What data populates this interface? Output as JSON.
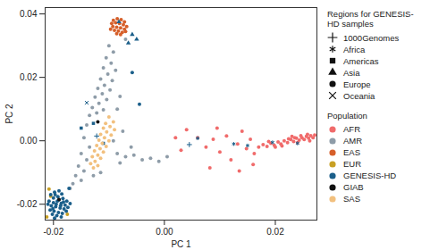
{
  "chart_data": {
    "type": "scatter",
    "xlabel": "PC 1",
    "ylabel": "PC 2",
    "xlim": [
      -0.0215,
      0.0275
    ],
    "ylim": [
      -0.025,
      0.042
    ],
    "xticks": [
      {
        "value": -0.02,
        "label": "-0.02"
      },
      {
        "value": 0,
        "label": "0.00"
      },
      {
        "value": 0.02,
        "label": "0.02"
      }
    ],
    "yticks": [
      {
        "value": -0.02,
        "label": "-0.02"
      },
      {
        "value": 0,
        "label": "0.00"
      },
      {
        "value": 0.02,
        "label": "0.02"
      },
      {
        "value": 0.04,
        "label": "0.04"
      }
    ],
    "grid": false,
    "legend": "right",
    "shape_legend_title": "Regions for GENESIS-HD samples",
    "legend_title": "Population",
    "series": [
      {
        "name": "AFR",
        "color": "#f06b6b",
        "marker": "circle",
        "points": [
          [
            0.017,
            -0.002
          ],
          [
            0.0178,
            -0.0012
          ],
          [
            0.0185,
            -0.0018
          ],
          [
            0.0192,
            -0.0008
          ],
          [
            0.0198,
            -0.0014
          ],
          [
            0.0205,
            -0.0004
          ],
          [
            0.021,
            -0.001
          ],
          [
            0.0216,
            0.0
          ],
          [
            0.0222,
            -0.0006
          ],
          [
            0.0228,
            0.0004
          ],
          [
            0.0233,
            -0.0002
          ],
          [
            0.0238,
            0.0008
          ],
          [
            0.0243,
            0.0002
          ],
          [
            0.0248,
            0.001
          ],
          [
            0.0252,
            0.0004
          ],
          [
            0.0256,
            0.0014
          ],
          [
            0.026,
            0.0008
          ],
          [
            0.0264,
            0.0016
          ],
          [
            0.0268,
            0.001
          ],
          [
            0.0271,
            0.0018
          ],
          [
            0.0258,
            0.002
          ],
          [
            0.0246,
            0.0016
          ],
          [
            0.0235,
            0.001
          ],
          [
            0.0224,
            0.0006
          ],
          [
            0.0212,
            -0.0016
          ],
          [
            0.02,
            -0.002
          ],
          [
            0.0188,
            -0.0002
          ],
          [
            0.024,
            -0.0006
          ],
          [
            0.0262,
            0.0
          ],
          [
            0.023,
            0.0014
          ],
          [
            0.004,
            0.0035
          ],
          [
            0.006,
            0.001
          ],
          [
            0.0075,
            -0.002
          ],
          [
            0.0088,
            0.0005
          ],
          [
            0.01,
            -0.0035
          ],
          [
            0.0112,
            0.0015
          ],
          [
            0.012,
            -0.006
          ],
          [
            0.0132,
            -0.001
          ],
          [
            0.014,
            0.003
          ],
          [
            0.0148,
            -0.0025
          ],
          [
            0.0155,
            0.0005
          ],
          [
            0.0162,
            -0.004
          ],
          [
            0.003,
            -0.003
          ],
          [
            0.0095,
            0.004
          ],
          [
            0.002,
            0.001
          ],
          [
            0.0082,
            -0.0085
          ],
          [
            0.0135,
            -0.0095
          ],
          [
            0.016,
            -0.0075
          ]
        ]
      },
      {
        "name": "AMR",
        "color": "#8e9ca8",
        "marker": "circle",
        "points": [
          [
            -0.01,
            0.03
          ],
          [
            -0.0092,
            0.028
          ],
          [
            -0.0105,
            0.0262
          ],
          [
            -0.0096,
            0.0245
          ],
          [
            -0.011,
            0.023
          ],
          [
            -0.0088,
            0.0222
          ],
          [
            -0.0102,
            0.021
          ],
          [
            -0.0115,
            0.0195
          ],
          [
            -0.0094,
            0.019
          ],
          [
            -0.0108,
            0.0175
          ],
          [
            -0.012,
            0.0165
          ],
          [
            -0.0098,
            0.016
          ],
          [
            -0.0112,
            0.0148
          ],
          [
            -0.0125,
            0.0138
          ],
          [
            -0.0104,
            0.013
          ],
          [
            -0.0118,
            0.0118
          ],
          [
            -0.013,
            0.0105
          ],
          [
            -0.011,
            0.0098
          ],
          [
            -0.0122,
            0.0088
          ],
          [
            -0.0135,
            0.008
          ],
          [
            -0.0085,
            0.01
          ],
          [
            -0.008,
            0.014
          ],
          [
            -0.014,
            0.005
          ],
          [
            -0.0145,
            0.001
          ],
          [
            -0.0135,
            -0.002
          ],
          [
            -0.015,
            -0.004
          ],
          [
            -0.014,
            -0.006
          ],
          [
            -0.0155,
            -0.008
          ],
          [
            -0.0145,
            -0.0095
          ],
          [
            -0.016,
            -0.011
          ],
          [
            -0.015,
            -0.0125
          ],
          [
            -0.0165,
            -0.0135
          ],
          [
            -0.017,
            -0.015
          ],
          [
            -0.0085,
            -0.004
          ],
          [
            -0.007,
            -0.005
          ],
          [
            -0.0055,
            -0.0045
          ],
          [
            -0.004,
            -0.006
          ],
          [
            -0.0025,
            -0.0055
          ],
          [
            -0.001,
            -0.0065
          ],
          [
            0.0005,
            -0.005
          ],
          [
            -0.008,
            -0.007
          ],
          [
            -0.006,
            -0.002
          ],
          [
            -0.0092,
            0.0
          ],
          [
            -0.0075,
            0.003
          ],
          [
            -0.007,
            0.032
          ],
          [
            -0.0115,
            -0.01
          ],
          [
            -0.0128,
            -0.011
          ]
        ]
      },
      {
        "name": "EAS",
        "color": "#d65f2a",
        "marker": "circle",
        "points": [
          [
            -0.0092,
            0.038
          ],
          [
            -0.0085,
            0.0385
          ],
          [
            -0.0078,
            0.0382
          ],
          [
            -0.0072,
            0.0375
          ],
          [
            -0.0095,
            0.037
          ],
          [
            -0.0088,
            0.0372
          ],
          [
            -0.0081,
            0.037
          ],
          [
            -0.0074,
            0.0366
          ],
          [
            -0.0068,
            0.036
          ],
          [
            -0.0093,
            0.036
          ],
          [
            -0.0086,
            0.0358
          ],
          [
            -0.0079,
            0.0356
          ],
          [
            -0.0072,
            0.0352
          ],
          [
            -0.009,
            0.0348
          ],
          [
            -0.0083,
            0.0346
          ],
          [
            -0.0076,
            0.0342
          ],
          [
            -0.0086,
            0.0338
          ],
          [
            -0.0079,
            0.0335
          ],
          [
            -0.0097,
            0.0352
          ],
          [
            -0.007,
            0.0345
          ]
        ]
      },
      {
        "name": "EUR",
        "color": "#c8a024",
        "marker": "circle",
        "points": [
          [
            -0.0208,
            -0.0152
          ],
          [
            -0.0212,
            -0.024
          ],
          [
            -0.0205,
            -0.0175
          ],
          [
            -0.0175,
            -0.0232
          ]
        ]
      },
      {
        "name": "GENESIS-HD",
        "color": "#1b5f8a",
        "groups": [
          {
            "region": "1000Genomes",
            "marker": "plus",
            "points": [
              [
                0.0045,
                -0.0012
              ],
              [
                -0.0122,
                0.0015
              ]
            ]
          },
          {
            "region": "Africa",
            "marker": "asterisk",
            "points": [
              [
                0.006,
                0.0008
              ],
              [
                0.0125,
                -0.001
              ],
              [
                0.015,
                -0.0015
              ],
              [
                0.0195,
                -0.0005
              ],
              [
                0.024,
                -0.0008
              ]
            ]
          },
          {
            "region": "Americas",
            "marker": "square",
            "points": [
              [
                -0.011,
                -0.0008
              ],
              [
                -0.0128,
                0.0055
              ],
              [
                -0.015,
                0.004
              ]
            ]
          },
          {
            "region": "Asia",
            "marker": "triangle",
            "points": [
              [
                -0.0058,
                0.0335
              ],
              [
                -0.005,
                0.032
              ],
              [
                -0.0065,
                0.0308
              ],
              [
                -0.0082,
                0.0375
              ]
            ]
          },
          {
            "region": "Europe",
            "marker": "circle",
            "points": [
              [
                -0.0205,
                -0.017
              ],
              [
                -0.0198,
                -0.0162
              ],
              [
                -0.019,
                -0.0158
              ],
              [
                -0.0185,
                -0.0168
              ],
              [
                -0.02,
                -0.018
              ],
              [
                -0.0192,
                -0.0176
              ],
              [
                -0.0183,
                -0.0182
              ],
              [
                -0.0176,
                -0.019
              ],
              [
                -0.0208,
                -0.019
              ],
              [
                -0.02,
                -0.0195
              ],
              [
                -0.0193,
                -0.019
              ],
              [
                -0.0186,
                -0.0197
              ],
              [
                -0.0179,
                -0.0203
              ],
              [
                -0.0204,
                -0.0205
              ],
              [
                -0.0196,
                -0.0208
              ],
              [
                -0.0188,
                -0.0212
              ],
              [
                -0.0181,
                -0.0215
              ],
              [
                -0.0174,
                -0.021
              ],
              [
                -0.0206,
                -0.0218
              ],
              [
                -0.0199,
                -0.0222
              ],
              [
                -0.0191,
                -0.0226
              ],
              [
                -0.0184,
                -0.0229
              ],
              [
                -0.0177,
                -0.0222
              ],
              [
                -0.0202,
                -0.0232
              ],
              [
                -0.0194,
                -0.0236
              ],
              [
                -0.0186,
                -0.024
              ],
              [
                -0.0198,
                -0.0244
              ],
              [
                -0.019,
                -0.0186
              ],
              [
                -0.0197,
                -0.017
              ],
              [
                -0.021,
                -0.02
              ],
              [
                -0.017,
                -0.0198
              ],
              [
                -0.0195,
                -0.02
              ],
              [
                -0.0187,
                -0.0204
              ],
              [
                -0.0201,
                -0.0214
              ],
              [
                -0.0182,
                -0.0193
              ],
              [
                -0.0172,
                -0.015
              ],
              [
                -0.0058,
                0.0215
              ],
              [
                -0.0045,
                0.0115
              ]
            ]
          },
          {
            "region": "Oceania",
            "marker": "times",
            "points": [
              [
                -0.014,
                0.012
              ]
            ]
          }
        ]
      },
      {
        "name": "GIAB",
        "color": "#111111",
        "marker": "circle",
        "points": [
          [
            -0.012,
            0.006
          ],
          [
            -0.019,
            -0.0185
          ]
        ]
      },
      {
        "name": "SAS",
        "color": "#f2c07e",
        "marker": "circle",
        "points": [
          [
            -0.01,
            0.0075
          ],
          [
            -0.0092,
            0.006
          ],
          [
            -0.0106,
            0.0055
          ],
          [
            -0.0098,
            0.0045
          ],
          [
            -0.011,
            0.004
          ],
          [
            -0.009,
            0.0035
          ],
          [
            -0.0104,
            0.0028
          ],
          [
            -0.0115,
            0.002
          ],
          [
            -0.0096,
            0.0018
          ],
          [
            -0.0108,
            0.001
          ],
          [
            -0.0118,
            0.0002
          ],
          [
            -0.01,
            0.0
          ],
          [
            -0.0112,
            -0.0008
          ],
          [
            -0.0122,
            -0.0015
          ],
          [
            -0.0105,
            -0.0018
          ],
          [
            -0.0116,
            -0.0025
          ],
          [
            -0.0126,
            -0.0032
          ],
          [
            -0.011,
            -0.0035
          ],
          [
            -0.012,
            -0.0045
          ],
          [
            -0.013,
            -0.005
          ],
          [
            -0.0115,
            -0.0055
          ],
          [
            -0.0125,
            -0.0065
          ],
          [
            -0.0133,
            -0.0072
          ],
          [
            -0.012,
            -0.0078
          ],
          [
            -0.0128,
            -0.0085
          ]
        ]
      }
    ]
  }
}
